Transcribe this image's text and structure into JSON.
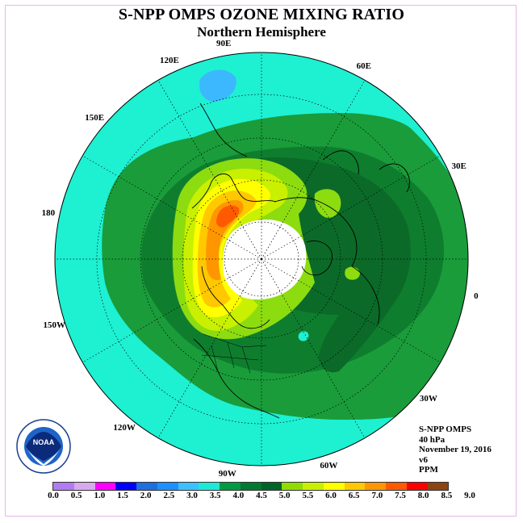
{
  "title": "S-NPP OMPS OZONE MIXING RATIO",
  "subtitle": "Northern Hemisphere",
  "projection": "north-polar-stereographic",
  "longitude_labels": [
    {
      "text": "90E",
      "lon": 90
    },
    {
      "text": "60E",
      "lon": 60
    },
    {
      "text": "30E",
      "lon": 30
    },
    {
      "text": "0",
      "lon": 0
    },
    {
      "text": "30W",
      "lon": -30
    },
    {
      "text": "60W",
      "lon": -60
    },
    {
      "text": "90W",
      "lon": -90
    },
    {
      "text": "120W",
      "lon": -120
    },
    {
      "text": "150W",
      "lon": -150
    },
    {
      "text": "180",
      "lon": 180
    },
    {
      "text": "150E",
      "lon": 150
    },
    {
      "text": "120E",
      "lon": 120
    }
  ],
  "info": {
    "instrument": "S-NPP OMPS",
    "level": "40 hPa",
    "date": "November 19, 2016",
    "version": "v6",
    "units": "PPM"
  },
  "logo_text": "NOAA",
  "colorbar": {
    "ticks": [
      "0.0",
      "0.5",
      "1.0",
      "1.5",
      "2.0",
      "2.5",
      "3.0",
      "3.5",
      "4.0",
      "4.5",
      "5.0",
      "5.5",
      "6.0",
      "6.5",
      "7.0",
      "7.5",
      "8.0",
      "8.5",
      "9.0"
    ],
    "colors": [
      "#b07cf0",
      "#d8a8f0",
      "#ff00ff",
      "#0000ff",
      "#1e6fe0",
      "#1e90ff",
      "#3cc0ff",
      "#1ee8d8",
      "#009a44",
      "#007a30",
      "#006428",
      "#90dc00",
      "#c8f000",
      "#ffff00",
      "#ffc800",
      "#ff9600",
      "#ff5a00",
      "#ff0000",
      "#8b4513"
    ]
  },
  "colors": {
    "ocean_fill": "#1ef0d2",
    "level_4_0": "#1a9c3a",
    "level_4_5": "#0e7e2e",
    "level_5_0": "#0b6a28",
    "level_5_5": "#8cdc10",
    "level_6_0": "#c8f000",
    "level_6_5": "#ffff00",
    "level_7_0": "#ffc800",
    "level_7_5": "#ff9600",
    "level_8_0": "#ff5a00",
    "low_blue": "#3cb8ff",
    "polar_night": "#ffffff"
  }
}
